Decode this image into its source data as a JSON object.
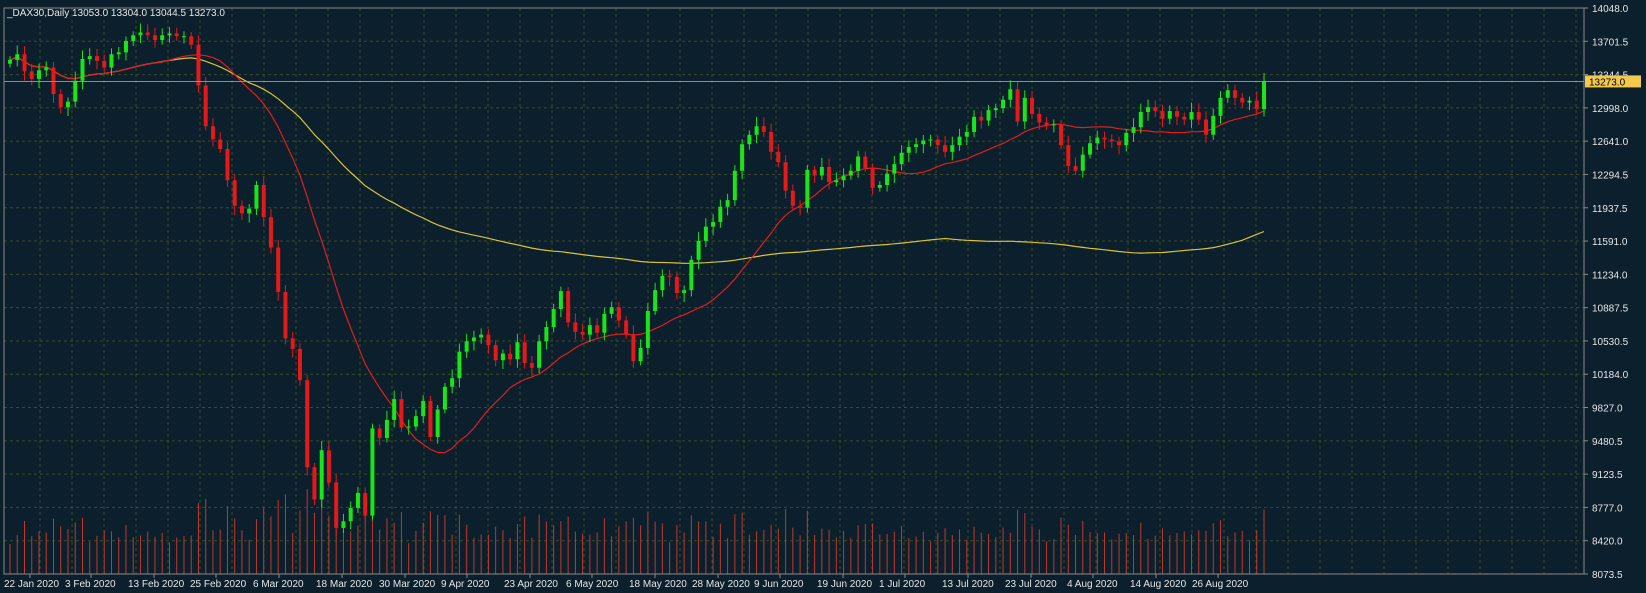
{
  "window": {
    "symbol_label": "_DAX30,Daily",
    "ohlc_text": "13053.0 13304.0 13044.5 13273.0"
  },
  "colors": {
    "background": "#0c1f2c",
    "grid": "#3a4a2a",
    "bull": "#19e619",
    "bear": "#e61919",
    "ma_fast": "#e01e1e",
    "ma_slow": "#d8c23a",
    "volume": "#c0392b",
    "price_tag_bg": "#f2c94c",
    "axis_text": "#e6e6e6"
  },
  "chart_data": {
    "type": "candlestick",
    "title": "_DAX30,Daily",
    "ohlc_header": "13053.0 13304.0 13044.5 13273.0",
    "ylim": [
      8073.5,
      14048.0
    ],
    "y_ticks": [
      "14048.0",
      "13701.5",
      "13344.5",
      "12998.0",
      "12641.0",
      "12294.5",
      "11937.5",
      "11591.0",
      "11234.0",
      "10887.5",
      "10530.5",
      "10184.0",
      "9827.0",
      "9480.5",
      "9123.5",
      "8777.0",
      "8420.0",
      "8073.5"
    ],
    "x_ticks": [
      "22 Jan 2020",
      "3 Feb 2020",
      "13 Feb 2020",
      "25 Feb 2020",
      "6 Mar 2020",
      "18 Mar 2020",
      "30 Mar 2020",
      "9 Apr 2020",
      "23 Apr 2020",
      "6 May 2020",
      "18 May 2020",
      "28 May 2020",
      "9 Jun 2020",
      "19 Jun 2020",
      "1 Jul 2020",
      "13 Jul 2020",
      "23 Jul 2020",
      "4 Aug 2020",
      "14 Aug 2020",
      "26 Aug 2020"
    ],
    "last_price": "13273.0",
    "grid": true,
    "closes": [
      13500,
      13560,
      13380,
      13300,
      13390,
      13420,
      13140,
      13000,
      13060,
      13280,
      13510,
      13540,
      13490,
      13420,
      13560,
      13580,
      13700,
      13760,
      13790,
      13760,
      13710,
      13760,
      13780,
      13750,
      13750,
      13660,
      13230,
      12800,
      12660,
      12560,
      12230,
      11960,
      11880,
      11930,
      12180,
      11840,
      11520,
      11050,
      10560,
      10450,
      10120,
      9200,
      8860,
      9380,
      9040,
      8560,
      8630,
      8770,
      8930,
      8690,
      9610,
      9510,
      9700,
      9920,
      9620,
      9630,
      9740,
      9900,
      9520,
      9810,
      10050,
      10140,
      10420,
      10530,
      10570,
      10600,
      10490,
      10330,
      10400,
      10340,
      10520,
      10300,
      10250,
      10530,
      10680,
      10870,
      11060,
      10730,
      10630,
      10600,
      10700,
      10620,
      10820,
      10890,
      10750,
      10600,
      10320,
      10460,
      10850,
      11070,
      11220,
      11210,
      11040,
      11070,
      11390,
      11590,
      11740,
      11790,
      11950,
      12020,
      12330,
      12610,
      12710,
      12800,
      12740,
      12530,
      12420,
      12120,
      11960,
      11940,
      12340,
      12280,
      12370,
      12210,
      12230,
      12280,
      12330,
      12480,
      12360,
      12150,
      12180,
      12300,
      12400,
      12520,
      12580,
      12610,
      12650,
      12660,
      12600,
      12530,
      12600,
      12690,
      12740,
      12900,
      12860,
      12970,
      12990,
      13080,
      13190,
      12850,
      13100,
      12930,
      12840,
      12810,
      12820,
      12600,
      12380,
      12330,
      12500,
      12620,
      12680,
      12660,
      12640,
      12600,
      12730,
      12790,
      12950,
      13000,
      12960,
      12880,
      12960,
      12900,
      12870,
      12950,
      12870,
      12710,
      12910,
      13100,
      13180,
      13100,
      13050,
      13070,
      12980,
      13273
    ],
    "ma_fast_label_hint": "",
    "volume_bars": true
  }
}
